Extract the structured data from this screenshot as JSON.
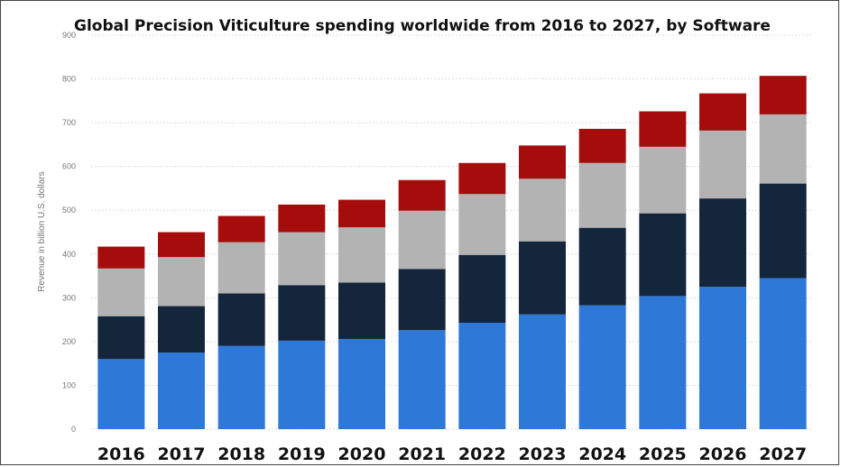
{
  "chart_data": {
    "type": "bar",
    "stacked": true,
    "title": "Global Precision Viticulture spending worldwide from 2016 to 2027, by Software",
    "ylabel": "Revenue in billion U.S. dollars",
    "xlabel": "",
    "ylim": [
      0,
      900
    ],
    "yticks": [
      "0",
      "100",
      "200",
      "300",
      "400",
      "500",
      "600",
      "700",
      "800",
      "900"
    ],
    "grid": true,
    "categories": [
      "2016",
      "2017",
      "2018",
      "2019",
      "2020",
      "2021",
      "2022",
      "2023",
      "2024",
      "2025",
      "2026",
      "2027"
    ],
    "series": [
      {
        "color": "#2e78d8",
        "values": [
          160,
          175,
          190,
          202,
          206,
          226,
          243,
          262,
          283,
          304,
          325,
          345
        ]
      },
      {
        "color": "#13263c",
        "values": [
          98,
          106,
          120,
          127,
          129,
          140,
          155,
          167,
          177,
          189,
          202,
          216
        ]
      },
      {
        "color": "#b3b3b3",
        "values": [
          109,
          112,
          117,
          121,
          126,
          133,
          139,
          143,
          148,
          152,
          155,
          158
        ]
      },
      {
        "color": "#a50d0d",
        "values": [
          50,
          57,
          60,
          63,
          63,
          70,
          71,
          76,
          78,
          81,
          85,
          88
        ]
      }
    ]
  }
}
